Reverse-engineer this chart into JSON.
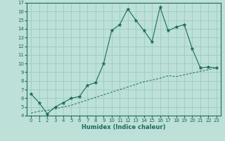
{
  "xlabel": "Humidex (Indice chaleur)",
  "ylabel": "",
  "xlim": [
    -0.5,
    23.5
  ],
  "ylim": [
    4,
    17
  ],
  "xticks": [
    0,
    1,
    2,
    3,
    4,
    5,
    6,
    7,
    8,
    9,
    10,
    11,
    12,
    13,
    14,
    15,
    16,
    17,
    18,
    19,
    20,
    21,
    22,
    23
  ],
  "yticks": [
    4,
    5,
    6,
    7,
    8,
    9,
    10,
    11,
    12,
    13,
    14,
    15,
    16,
    17
  ],
  "background_color": "#bde0d8",
  "grid_color": "#99ccc2",
  "line_color": "#1a6b5a",
  "line1_x": [
    0,
    1,
    2,
    3,
    4,
    5,
    6,
    7,
    8,
    9,
    10,
    11,
    12,
    13,
    14,
    15,
    16,
    17,
    18,
    19,
    20,
    21,
    22,
    23
  ],
  "line1_y": [
    6.5,
    5.5,
    4.2,
    5.0,
    5.5,
    6.0,
    6.2,
    7.5,
    7.8,
    10.0,
    13.8,
    14.5,
    16.3,
    15.0,
    13.8,
    12.5,
    16.5,
    13.8,
    14.2,
    14.5,
    11.7,
    9.5,
    9.6,
    9.5
  ],
  "line2_x": [
    0,
    1,
    2,
    3,
    4,
    5,
    6,
    7,
    8,
    9,
    10,
    11,
    12,
    13,
    14,
    15,
    16,
    17,
    18,
    19,
    20,
    21,
    22,
    23
  ],
  "line2_y": [
    4.3,
    4.5,
    4.6,
    4.8,
    5.0,
    5.2,
    5.5,
    5.8,
    6.1,
    6.4,
    6.7,
    7.0,
    7.3,
    7.6,
    7.9,
    8.1,
    8.3,
    8.6,
    8.5,
    8.7,
    8.9,
    9.1,
    9.3,
    9.5
  ]
}
